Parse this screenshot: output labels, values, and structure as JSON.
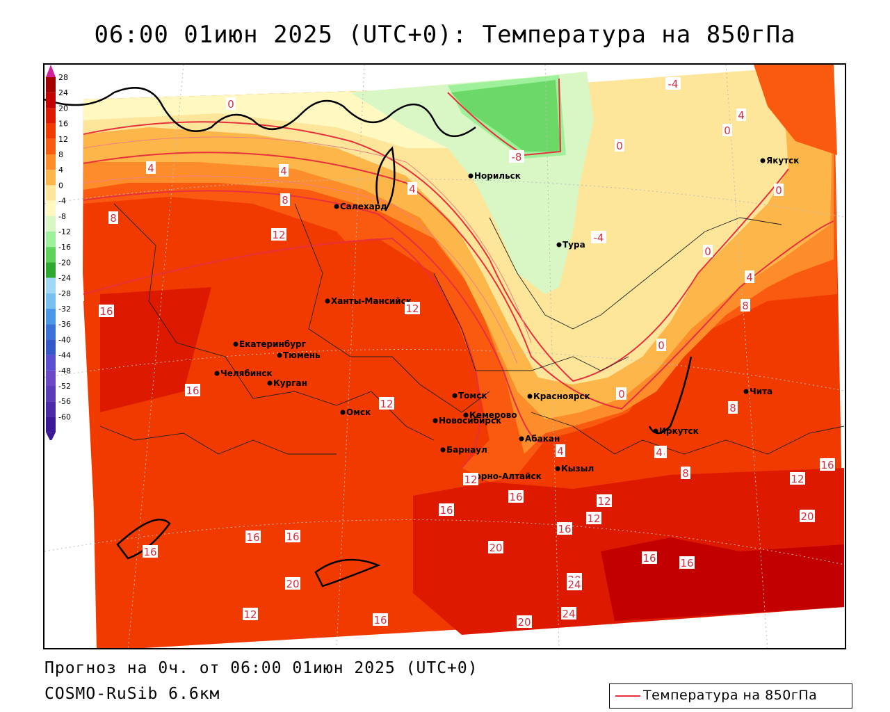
{
  "title": "06:00 01июн 2025 (UTC+0): Температура на 850гПа",
  "footer": {
    "forecast": "Прогноз на 0ч. от 06:00 01июн 2025 (UTC+0)",
    "model": "COSMO-RuSib 6.6км"
  },
  "legend": {
    "label": "Температура на 850гПа",
    "line_color": "#e8303c"
  },
  "colorbar": {
    "ticks": [
      "28",
      "24",
      "20",
      "16",
      "12",
      "8",
      "4",
      "0",
      "-4",
      "-8",
      "-12",
      "-16",
      "-20",
      "-24",
      "-28",
      "-32",
      "-36",
      "-40",
      "-44",
      "-48",
      "-52",
      "-56",
      "-60"
    ],
    "colors": [
      "#a50000",
      "#c20000",
      "#dd1a00",
      "#f03a00",
      "#fa5a10",
      "#fd8c2a",
      "#fdb64a",
      "#fde59a",
      "#fff8c0",
      "#d8f7c4",
      "#9ef09a",
      "#5ed25a",
      "#2ea82e",
      "#a0d8f5",
      "#78c0f0",
      "#4c98e8",
      "#3a72d8",
      "#3458c8",
      "#5c4ed0",
      "#6a48c8",
      "#5a3cb8",
      "#4a2aa8",
      "#3a1898"
    ]
  },
  "cities": [
    {
      "name": "Норильск"
    },
    {
      "name": "Якутск"
    },
    {
      "name": "Салехард"
    },
    {
      "name": "Тура"
    },
    {
      "name": "Ханты-Мансийск"
    },
    {
      "name": "Екатеринбург"
    },
    {
      "name": "Тюмень"
    },
    {
      "name": "Челябинск"
    },
    {
      "name": "Курган"
    },
    {
      "name": "Томск"
    },
    {
      "name": "Красноярск"
    },
    {
      "name": "Омск"
    },
    {
      "name": "Новосибирск"
    },
    {
      "name": "Кемерово"
    },
    {
      "name": "Абакан"
    },
    {
      "name": "Иркутск"
    },
    {
      "name": "Чита"
    },
    {
      "name": "Барнаул"
    },
    {
      "name": "Кызыл"
    },
    {
      "name": "Горно-Алтайск"
    }
  ],
  "isotherm_labels": [
    "0",
    "-4",
    "4",
    "0",
    "0",
    "4",
    "0",
    "-8",
    "4",
    "4",
    "8",
    "8",
    "12",
    "-4",
    "0",
    "4",
    "8",
    "16",
    "12",
    "16",
    "0",
    "12",
    "0",
    "8",
    "4",
    "16",
    "12",
    "4",
    "8",
    "12",
    "16",
    "16",
    "16",
    "12",
    "12",
    "16",
    "20",
    "16",
    "20",
    "16",
    "16",
    "20",
    "20",
    "24",
    "24",
    "20",
    "16",
    "12",
    "16",
    "0",
    "4"
  ]
}
